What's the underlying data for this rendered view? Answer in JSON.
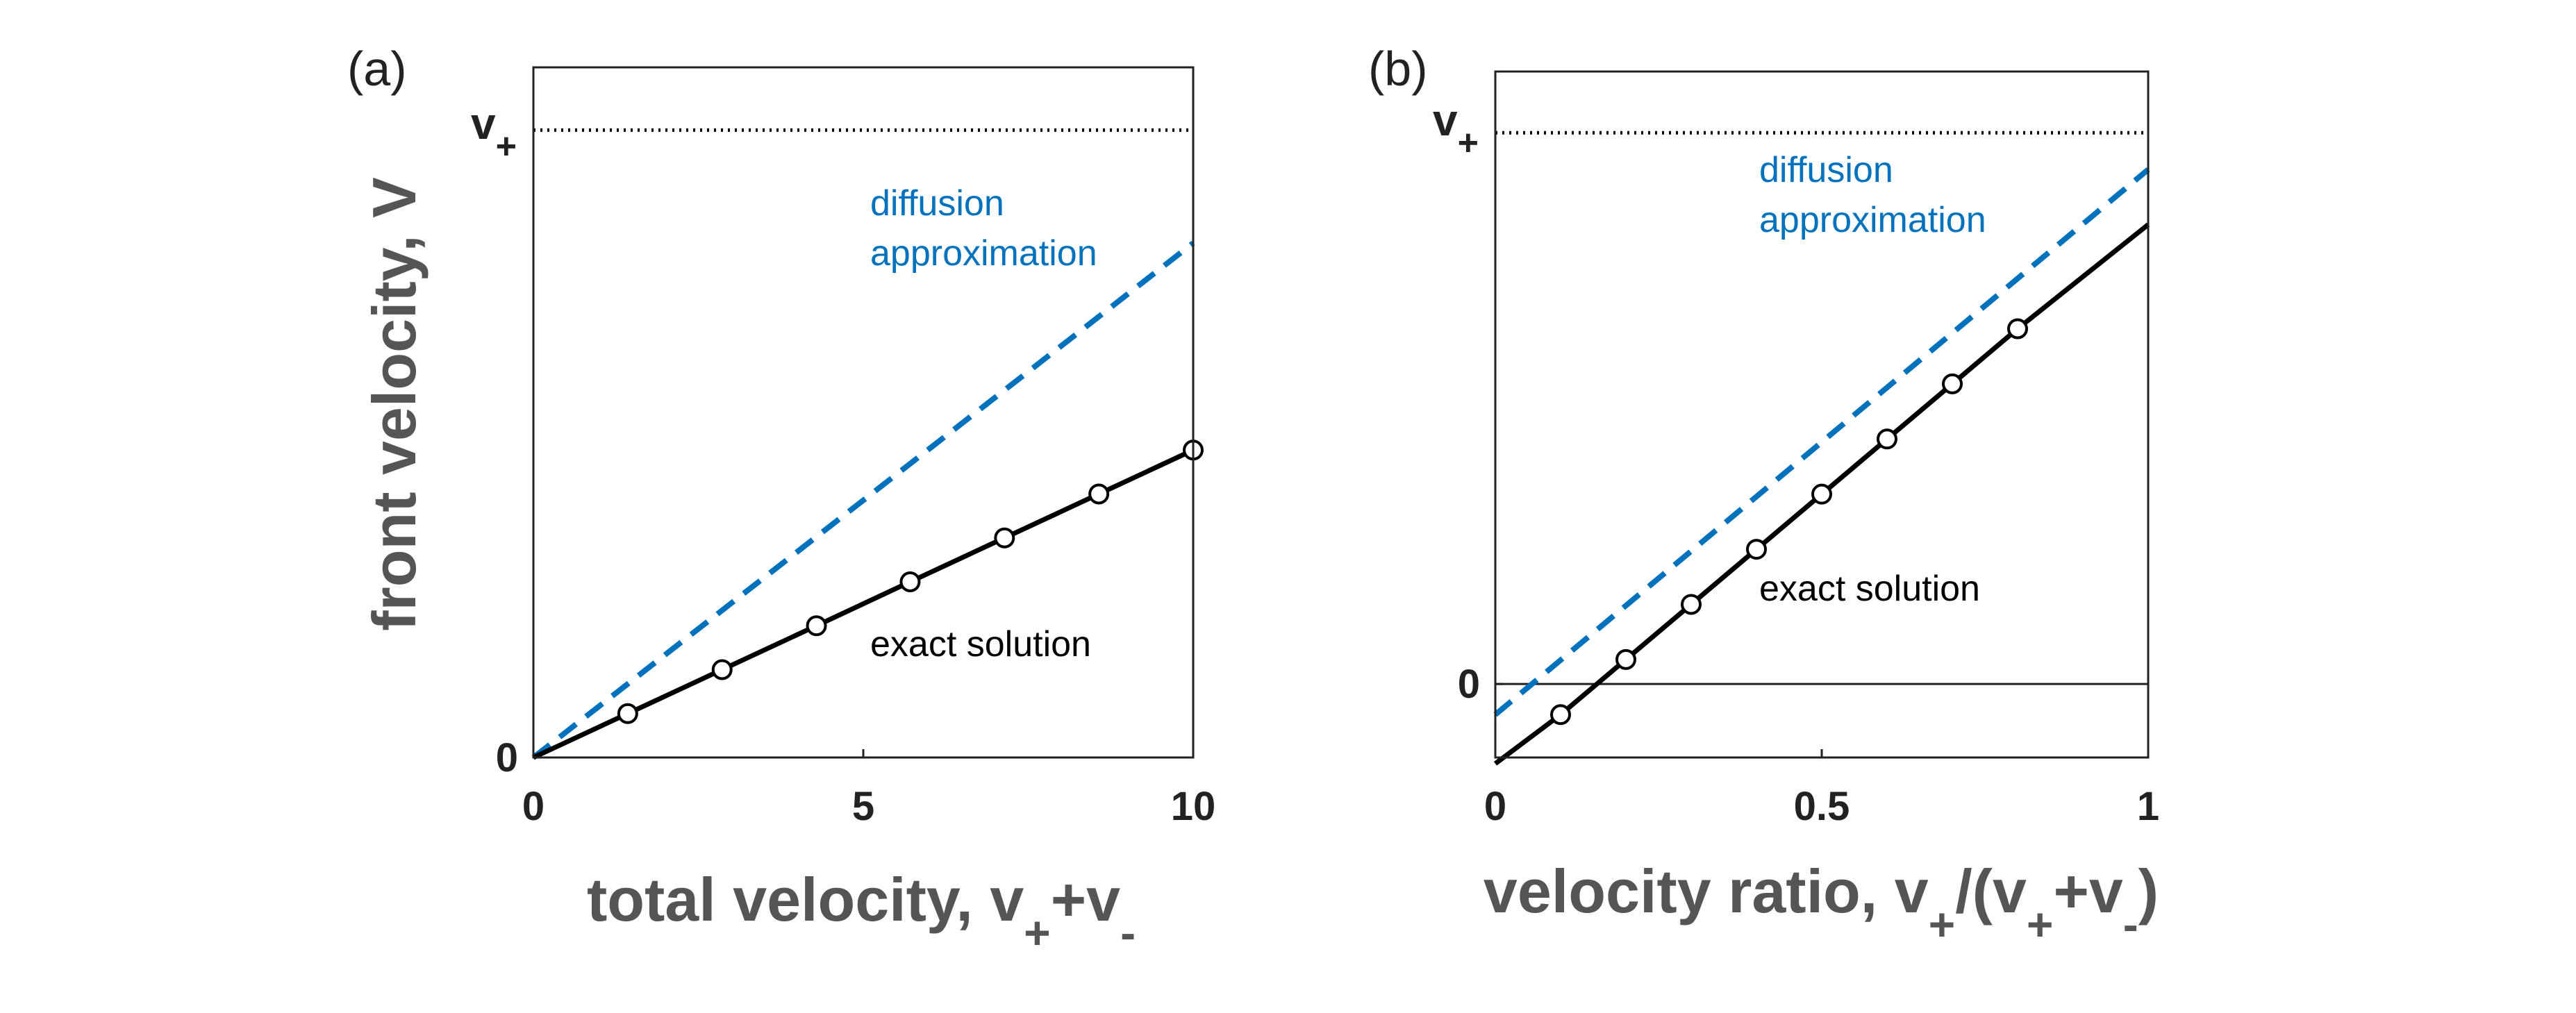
{
  "colors": {
    "exact": "#000000",
    "diffusion": "#0072BD",
    "reference": "#000000",
    "axes": "#222222",
    "axis_title": "#555555"
  },
  "chart_data": [
    {
      "type": "line",
      "panel_label": "(a)",
      "xlabel": "total velocity, v+v",
      "xlabel_parts": {
        "main": "total velocity, v",
        "sub1": "+",
        "mid": "+v",
        "sub2": "-"
      },
      "ylabel": "front velocity, V",
      "xlim": [
        0,
        10
      ],
      "ylim": [
        0,
        1.1
      ],
      "x_ticks": [
        0,
        5,
        10
      ],
      "x_tick_labels": [
        "0",
        "5",
        "10"
      ],
      "y_tick_labels": [
        {
          "value": 0,
          "label": "0"
        }
      ],
      "reference_line": {
        "y": 1.0,
        "label": "v",
        "label_sub": "+",
        "style": "dotted"
      },
      "series": [
        {
          "name": "diffusion approximation",
          "style": "dashed",
          "x": [
            0,
            10
          ],
          "y": [
            0,
            0.82
          ]
        },
        {
          "name": "exact solution",
          "style": "solid",
          "markers": "circle",
          "x": [
            0,
            1.43,
            2.86,
            4.29,
            5.71,
            7.14,
            8.57,
            10
          ],
          "y": [
            0,
            0.07,
            0.14,
            0.21,
            0.28,
            0.35,
            0.42,
            0.49
          ],
          "marker_x": [
            1.43,
            2.86,
            4.29,
            5.71,
            7.14,
            8.57,
            10
          ],
          "marker_y": [
            0.07,
            0.14,
            0.21,
            0.28,
            0.35,
            0.42,
            0.49
          ]
        }
      ],
      "annotations": [
        {
          "lines": [
            "diffusion",
            "approximation"
          ],
          "series": "diffusion"
        },
        {
          "lines": [
            "exact solution"
          ],
          "series": "exact"
        }
      ]
    },
    {
      "type": "line",
      "panel_label": "(b)",
      "xlabel": "velocity ratio, v+/(v++v-)",
      "xlabel_parts": {
        "main": "velocity ratio, v",
        "sub1": "+",
        "mid": "/(v",
        "sub2": "+",
        "mid2": "+v",
        "sub3": "-",
        "end": ")"
      },
      "ylabel": "",
      "xlim": [
        0,
        1
      ],
      "ylim": [
        -0.12,
        1.0
      ],
      "x_ticks": [
        0,
        0.5,
        1
      ],
      "x_tick_labels": [
        "0",
        "0.5",
        "1"
      ],
      "y_tick_labels": [
        {
          "value": 0,
          "label": "0"
        }
      ],
      "zero_line": true,
      "reference_line": {
        "y": 0.9,
        "label": "v",
        "label_sub": "+",
        "style": "dotted"
      },
      "series": [
        {
          "name": "diffusion approximation",
          "style": "dashed",
          "x": [
            0,
            1
          ],
          "y": [
            -0.05,
            0.84
          ]
        },
        {
          "name": "exact solution",
          "style": "solid",
          "markers": "circle",
          "x": [
            0,
            0.1,
            0.2,
            0.3,
            0.4,
            0.5,
            0.6,
            0.7,
            0.8,
            1
          ],
          "y": [
            -0.13,
            -0.05,
            0.04,
            0.13,
            0.22,
            0.31,
            0.4,
            0.49,
            0.58,
            0.75
          ],
          "marker_x": [
            0.1,
            0.2,
            0.3,
            0.4,
            0.5,
            0.6,
            0.7,
            0.8
          ],
          "marker_y": [
            -0.05,
            0.04,
            0.13,
            0.22,
            0.31,
            0.4,
            0.49,
            0.58
          ]
        }
      ],
      "annotations": [
        {
          "lines": [
            "diffusion",
            "approximation"
          ],
          "series": "diffusion"
        },
        {
          "lines": [
            "exact solution"
          ],
          "series": "exact"
        }
      ]
    }
  ]
}
